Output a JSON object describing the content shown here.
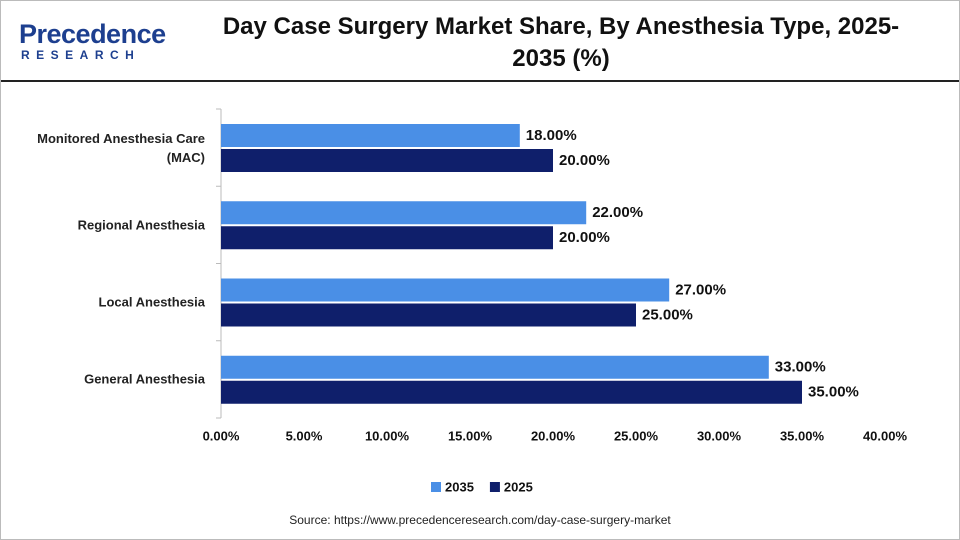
{
  "logo": {
    "name": "Precedence",
    "sub": "RESEARCH"
  },
  "chart_data": {
    "type": "hbar",
    "title": "Day Case Surgery Market Share, By Anesthesia Type, 2025-2035 (%)",
    "categories": [
      "Monitored Anesthesia Care (MAC)",
      "Regional Anesthesia",
      "Local Anesthesia",
      "General Anesthesia"
    ],
    "series": [
      {
        "name": "2035",
        "color": "#4a8fe6",
        "values": [
          18,
          22,
          27,
          33
        ],
        "value_labels": [
          "18.00%",
          "22.00%",
          "27.00%",
          "33.00%"
        ]
      },
      {
        "name": "2025",
        "color": "#0f1f6b",
        "values": [
          20,
          20,
          25,
          35
        ],
        "value_labels": [
          "20.00%",
          "20.00%",
          "25.00%",
          "35.00%"
        ]
      }
    ],
    "xlim": [
      0,
      40
    ],
    "xticks": [
      {
        "value": 0,
        "label": "0.00%"
      },
      {
        "value": 5,
        "label": "5.00%"
      },
      {
        "value": 10,
        "label": "10.00%"
      },
      {
        "value": 15,
        "label": "15.00%"
      },
      {
        "value": 20,
        "label": "20.00%"
      },
      {
        "value": 25,
        "label": "25.00%"
      },
      {
        "value": 30,
        "label": "30.00%"
      },
      {
        "value": 35,
        "label": "35.00%"
      },
      {
        "value": 40,
        "label": "40.00%"
      }
    ],
    "legend": "bottom",
    "source": "Source: https://www.precedenceresearch.com/day-case-surgery-market"
  }
}
